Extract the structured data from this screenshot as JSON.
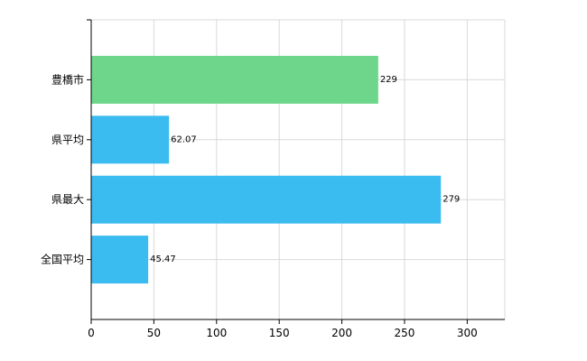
{
  "chart_data": {
    "type": "bar",
    "orientation": "horizontal",
    "categories": [
      "豊橋市",
      "県平均",
      "県最大",
      "全国平均"
    ],
    "values": [
      229,
      62.07,
      279,
      45.47
    ],
    "data_labels": [
      "229",
      "62.07",
      "279",
      "45.47"
    ],
    "colors": [
      "#6dd68a",
      "#3bbcf0",
      "#3bbcf0",
      "#3bbcf0"
    ],
    "xlim": [
      0,
      330
    ],
    "xticks": [
      0,
      50,
      100,
      150,
      200,
      250,
      300
    ],
    "grid": true,
    "legend": "none"
  }
}
